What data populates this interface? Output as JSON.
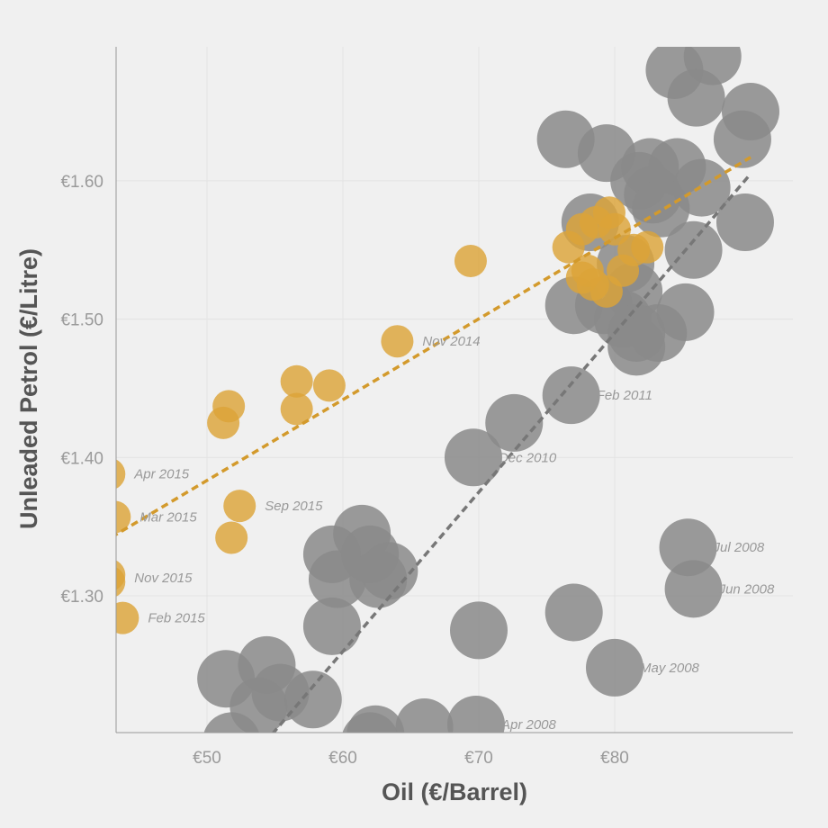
{
  "colors": {
    "background": "#f0f0f0",
    "recent": "#dca438",
    "recent_trend": "#d39a2c",
    "past": "#8a8a8a",
    "past_trend": "#777777",
    "grid": "#e3e3e3",
    "axis": "#999999",
    "tick_text": "#9a9a9a",
    "title_text": "#555555",
    "annotation_text": "#999999"
  },
  "chart_data": {
    "type": "scatter",
    "xlabel": "Oil (€/Barrel)",
    "ylabel": "Unleaded Petrol (€/Litre)",
    "xlim": [
      40,
      90
    ],
    "ylim": [
      1.2,
      1.7
    ],
    "x_ticks": [
      {
        "value": 50,
        "label": "€50"
      },
      {
        "value": 60,
        "label": "€60"
      },
      {
        "value": 70,
        "label": "€70"
      },
      {
        "value": 80,
        "label": "€80"
      }
    ],
    "y_ticks": [
      {
        "value": 1.3,
        "label": "€1.30"
      },
      {
        "value": 1.4,
        "label": "€1.40"
      },
      {
        "value": 1.5,
        "label": "€1.50"
      },
      {
        "value": 1.6,
        "label": "€1.60"
      }
    ],
    "grid": true,
    "series": [
      {
        "id": "past",
        "color": "#8a8a8a",
        "opacity": 0.85,
        "bubble_size": "large",
        "points": [
          [
            84.4,
            1.68
          ],
          [
            86.0,
            1.66
          ],
          [
            87.2,
            1.69
          ],
          [
            90.0,
            1.65
          ],
          [
            89.4,
            1.63
          ],
          [
            76.4,
            1.63
          ],
          [
            79.4,
            1.62
          ],
          [
            82.6,
            1.61
          ],
          [
            84.6,
            1.61
          ],
          [
            81.8,
            1.6
          ],
          [
            82.8,
            1.59
          ],
          [
            86.4,
            1.595
          ],
          [
            83.4,
            1.58
          ],
          [
            89.6,
            1.57
          ],
          [
            78.2,
            1.57
          ],
          [
            85.8,
            1.55
          ],
          [
            80.8,
            1.54
          ],
          [
            81.4,
            1.52
          ],
          [
            77.0,
            1.51
          ],
          [
            79.2,
            1.51
          ],
          [
            80.6,
            1.5
          ],
          [
            81.6,
            1.49
          ],
          [
            83.2,
            1.49
          ],
          [
            81.6,
            1.48
          ],
          [
            85.2,
            1.505
          ],
          [
            76.8,
            1.445
          ],
          [
            72.6,
            1.425
          ],
          [
            69.6,
            1.4
          ],
          [
            85.4,
            1.335
          ],
          [
            85.8,
            1.305
          ],
          [
            77.0,
            1.288
          ],
          [
            80.0,
            1.248
          ],
          [
            70.0,
            1.275
          ],
          [
            61.4,
            1.345
          ],
          [
            59.2,
            1.33
          ],
          [
            62.0,
            1.33
          ],
          [
            63.4,
            1.318
          ],
          [
            59.6,
            1.312
          ],
          [
            62.6,
            1.312
          ],
          [
            59.2,
            1.278
          ],
          [
            51.4,
            1.24
          ],
          [
            54.4,
            1.25
          ],
          [
            55.4,
            1.23
          ],
          [
            53.8,
            1.22
          ],
          [
            57.8,
            1.225
          ],
          [
            51.8,
            1.195
          ],
          [
            62.0,
            1.195
          ],
          [
            62.4,
            1.2
          ],
          [
            66.0,
            1.205
          ],
          [
            69.8,
            1.207
          ]
        ]
      },
      {
        "id": "recent",
        "color": "#dca438",
        "opacity": 0.82,
        "bubble_size": "small",
        "points": [
          [
            69.4,
            1.542
          ],
          [
            64.0,
            1.484
          ],
          [
            59.0,
            1.452
          ],
          [
            56.6,
            1.455
          ],
          [
            56.6,
            1.435
          ],
          [
            51.6,
            1.437
          ],
          [
            51.2,
            1.425
          ],
          [
            52.4,
            1.365
          ],
          [
            51.8,
            1.342
          ],
          [
            42.8,
            1.388
          ],
          [
            43.2,
            1.357
          ],
          [
            42.8,
            1.315
          ],
          [
            42.8,
            1.31
          ],
          [
            43.8,
            1.284
          ],
          [
            76.6,
            1.552
          ],
          [
            77.6,
            1.565
          ],
          [
            78.6,
            1.57
          ],
          [
            79.6,
            1.577
          ],
          [
            80.0,
            1.565
          ],
          [
            81.4,
            1.55
          ],
          [
            82.4,
            1.552
          ],
          [
            77.6,
            1.53
          ],
          [
            78.4,
            1.525
          ],
          [
            79.4,
            1.52
          ],
          [
            78.0,
            1.535
          ],
          [
            80.6,
            1.535
          ]
        ]
      }
    ],
    "trend_lines": [
      {
        "series": "recent",
        "color": "#d39a2c",
        "from": [
          40,
          1.325
        ],
        "to": [
          90,
          1.617
        ]
      },
      {
        "series": "past",
        "color": "#777777",
        "from": [
          54.8,
          1.2
        ],
        "to": [
          90,
          1.605
        ]
      }
    ],
    "annotations": [
      {
        "text": "Nov 2014",
        "x": 64.0,
        "y": 1.484
      },
      {
        "text": "Feb 2011",
        "x": 76.8,
        "y": 1.445
      },
      {
        "text": "Dec 2010",
        "x": 69.6,
        "y": 1.4
      },
      {
        "text": "Apr 2015",
        "x": 42.8,
        "y": 1.388
      },
      {
        "text": "Sep 2015",
        "x": 52.4,
        "y": 1.365
      },
      {
        "text": "Mar 2015",
        "x": 43.2,
        "y": 1.357
      },
      {
        "text": "Nov 2015",
        "x": 42.8,
        "y": 1.313
      },
      {
        "text": "Feb 2015",
        "x": 43.8,
        "y": 1.284
      },
      {
        "text": "Jul 2008",
        "x": 85.4,
        "y": 1.335
      },
      {
        "text": "Jun 2008",
        "x": 85.8,
        "y": 1.305
      },
      {
        "text": "May 2008",
        "x": 80.0,
        "y": 1.248
      },
      {
        "text": "Apr 2008",
        "x": 69.8,
        "y": 1.207
      }
    ]
  }
}
